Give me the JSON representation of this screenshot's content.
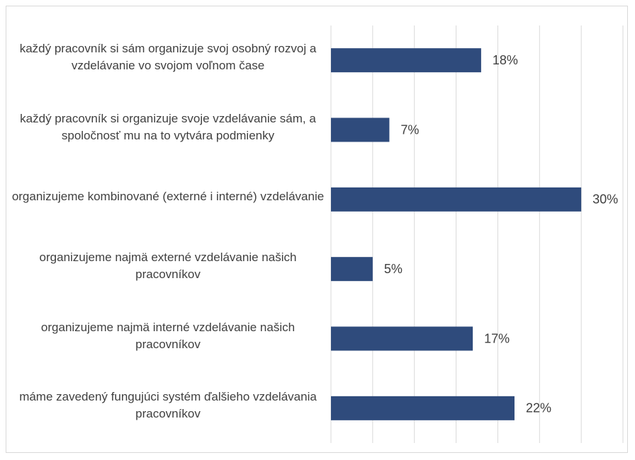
{
  "chart_data": {
    "type": "bar",
    "orientation": "horizontal",
    "categories": [
      "každý pracovník si sám organizuje svoj osobný rozvoj a vzdelávanie vo svojom voľnom čase",
      "každý pracovník si organizuje svoje vzdelávanie sám, a spoločnosť mu na to vytvára podmienky",
      "organizujeme kombinované (externé i interné) vzdelávanie",
      "organizujeme najmä externé vzdelávanie našich pracovníkov",
      "organizujeme najmä interné vzdelávanie našich pracovníkov",
      "máme zavedený fungujúci systém ďalšieho vzdelávania pracovníkov"
    ],
    "values": [
      18,
      7,
      30,
      5,
      17,
      22
    ],
    "value_labels": [
      "18%",
      "7%",
      "30%",
      "5%",
      "17%",
      "22%"
    ],
    "color": "#2f4b7c",
    "xlim": [
      0,
      35
    ],
    "xticks": [
      0,
      5,
      10,
      15,
      20,
      25,
      30,
      35
    ],
    "grid": true
  }
}
